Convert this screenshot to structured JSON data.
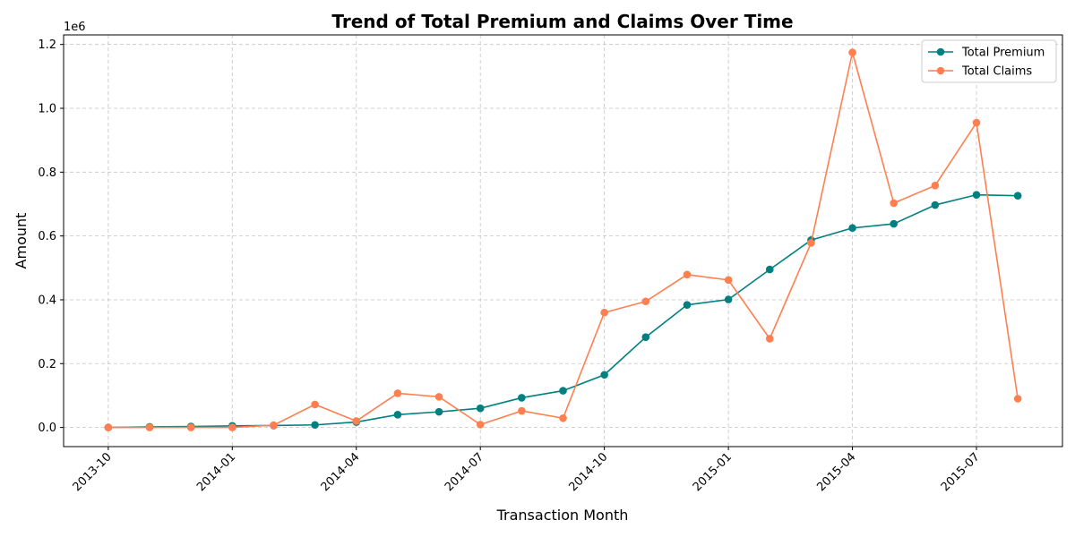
{
  "chart_data": {
    "type": "line",
    "title": "Trend of Total Premium and Claims Over Time",
    "xlabel": "Transaction Month",
    "ylabel": "Amount",
    "y_offset_label": "1e6",
    "ylim": [
      -60000,
      1230000
    ],
    "y_ticks": [
      0,
      200000,
      400000,
      600000,
      800000,
      1000000,
      1200000
    ],
    "y_tick_labels": [
      "0.0",
      "0.2",
      "0.4",
      "0.6",
      "0.8",
      "1.0",
      "1.2"
    ],
    "x_ticks": [
      "2013-10",
      "2014-01",
      "2014-04",
      "2014-07",
      "2014-10",
      "2015-01",
      "2015-04",
      "2015-07"
    ],
    "x": [
      "2013-10",
      "2013-11",
      "2013-12",
      "2014-01",
      "2014-02",
      "2014-03",
      "2014-04",
      "2014-05",
      "2014-06",
      "2014-07",
      "2014-08",
      "2014-09",
      "2014-10",
      "2014-11",
      "2014-12",
      "2015-01",
      "2015-02",
      "2015-03",
      "2015-04",
      "2015-05",
      "2015-06",
      "2015-07",
      "2015-08"
    ],
    "grid": true,
    "legend_position": "upper right",
    "series": [
      {
        "name": "Total Premium",
        "color": "#008080",
        "marker": "circle",
        "values": [
          0,
          2000,
          3000,
          5000,
          6000,
          8000,
          17000,
          40000,
          49000,
          60000,
          93000,
          115000,
          165000,
          283000,
          384000,
          401000,
          495000,
          587000,
          625000,
          638000,
          697000,
          729000,
          726000
        ]
      },
      {
        "name": "Total Claims",
        "color": "#ff7f50",
        "marker": "circle",
        "values": [
          0,
          0,
          0,
          0,
          7000,
          72000,
          20000,
          107000,
          96000,
          9000,
          52000,
          29000,
          360000,
          395000,
          479000,
          462000,
          278000,
          578000,
          1175000,
          703000,
          758000,
          955000,
          90000
        ]
      }
    ]
  }
}
